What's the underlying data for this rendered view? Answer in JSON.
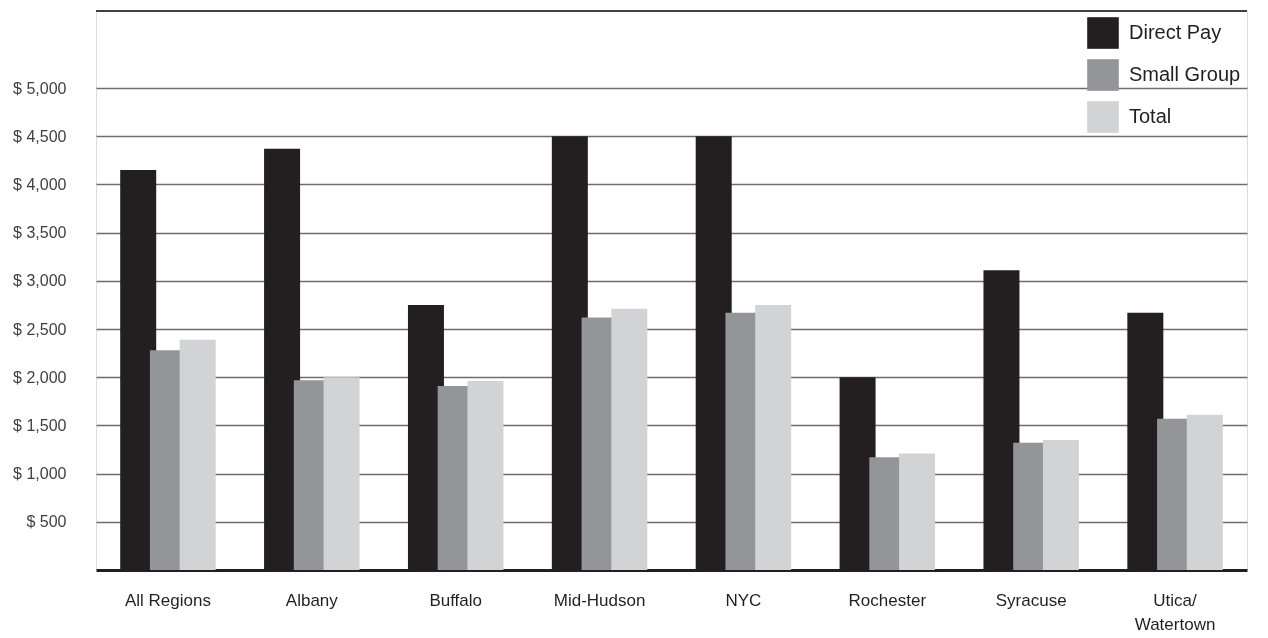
{
  "chart_data": {
    "type": "bar",
    "categories": [
      "All Regions",
      "Albany",
      "Buffalo",
      "Mid-Hudson",
      "NYC",
      "Rochester",
      "Syracuse",
      "Utica/\nWatertown"
    ],
    "series": [
      {
        "name": "Direct Pay",
        "color": "#231f20",
        "values": [
          4150,
          4370,
          2750,
          4500,
          4500,
          2000,
          3110,
          2670
        ]
      },
      {
        "name": "Small Group",
        "color": "#939598",
        "values": [
          2280,
          1970,
          1910,
          2620,
          2670,
          1170,
          1320,
          1570
        ]
      },
      {
        "name": "Total",
        "color": "#d1d3d4",
        "values": [
          2390,
          2000,
          1960,
          2710,
          2750,
          1210,
          1350,
          1610
        ]
      }
    ],
    "ylim": [
      0,
      5800
    ],
    "yticks": [
      {
        "value": 500,
        "label": "$    500"
      },
      {
        "value": 1000,
        "label": "$  1,000"
      },
      {
        "value": 1500,
        "label": "$  1,500"
      },
      {
        "value": 2000,
        "label": "$  2,000"
      },
      {
        "value": 2500,
        "label": "$  2,500"
      },
      {
        "value": 3000,
        "label": "$  3,000"
      },
      {
        "value": 3500,
        "label": "$  3,500"
      },
      {
        "value": 4000,
        "label": "$  4,000"
      },
      {
        "value": 4500,
        "label": "$  4,500"
      },
      {
        "value": 5000,
        "label": "$  5,000"
      }
    ],
    "grid": "y",
    "legend": "top right"
  }
}
